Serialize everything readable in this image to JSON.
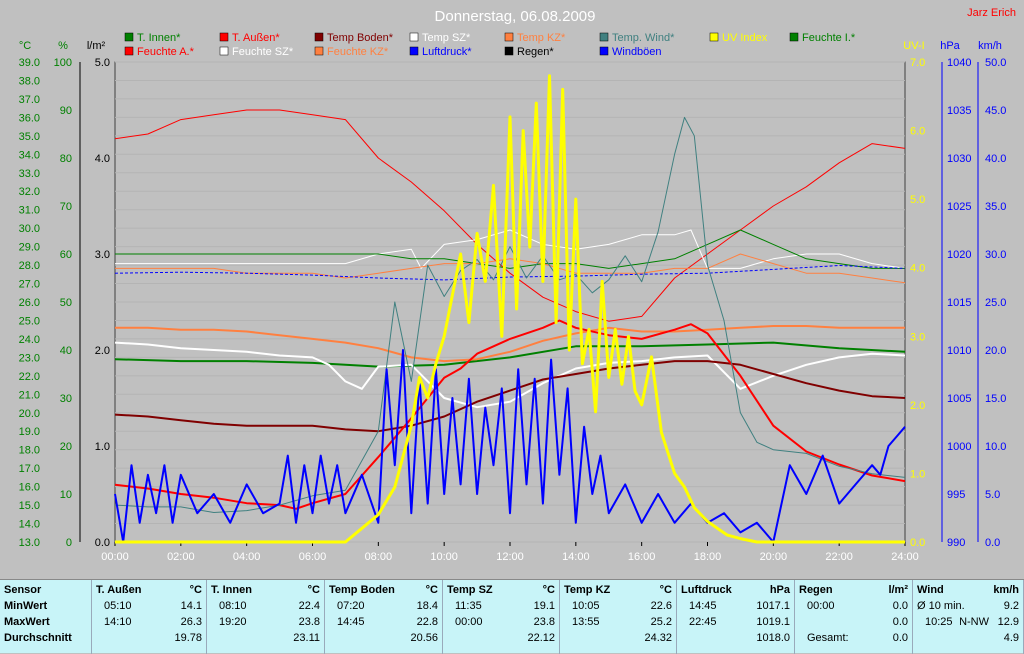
{
  "title": "Donnerstag, 06.08.2009",
  "author": "Jarz Erich",
  "legend": [
    {
      "name": "T. Innen*",
      "color": "#008000"
    },
    {
      "name": "T. Außen*",
      "color": "#ff0000"
    },
    {
      "name": "Temp Boden*",
      "color": "#800000"
    },
    {
      "name": "Temp SZ*",
      "color": "#ffffff"
    },
    {
      "name": "Temp KZ*",
      "color": "#ff8040"
    },
    {
      "name": "Temp. Wind*",
      "color": "#408080"
    },
    {
      "name": "UV Index",
      "color": "#ffff00"
    },
    {
      "name": "Feuchte I.*",
      "color": "#008000"
    },
    {
      "name": "Feuchte A.*",
      "color": "#ff0000"
    },
    {
      "name": "Feuchte SZ*",
      "color": "#ffffff"
    },
    {
      "name": "Feuchte KZ*",
      "color": "#ff8040"
    },
    {
      "name": "Luftdruck*",
      "color": "#0000ff"
    },
    {
      "name": "Regen*",
      "color": "#000000"
    },
    {
      "name": "Windböen",
      "color": "#0000ff"
    }
  ],
  "axes": {
    "temp": {
      "unit": "°C",
      "color": "#008000",
      "ticks": [
        "39.0",
        "38.0",
        "37.0",
        "36.0",
        "35.0",
        "34.0",
        "33.0",
        "32.0",
        "31.0",
        "30.0",
        "29.0",
        "28.0",
        "27.0",
        "26.0",
        "25.0",
        "24.0",
        "23.0",
        "22.0",
        "21.0",
        "20.0",
        "19.0",
        "18.0",
        "17.0",
        "16.0",
        "15.0",
        "14.0",
        "13.0"
      ]
    },
    "hum": {
      "unit": "%",
      "color": "#008000",
      "ticks": [
        "100",
        "90",
        "80",
        "70",
        "60",
        "50",
        "40",
        "30",
        "20",
        "10",
        "0"
      ]
    },
    "rain": {
      "unit": "l/m²",
      "color": "#000000",
      "ticks": [
        "5.0",
        "4.0",
        "3.0",
        "2.0",
        "1.0",
        "0.0"
      ]
    },
    "uv": {
      "unit": "UV-I",
      "color": "#ffff00",
      "ticks": [
        "7.0",
        "6.0",
        "5.0",
        "4.0",
        "3.0",
        "2.0",
        "1.0",
        "0.0"
      ]
    },
    "press": {
      "unit": "hPa",
      "color": "#0000ff",
      "ticks": [
        "1040",
        "1035",
        "1030",
        "1025",
        "1020",
        "1015",
        "1010",
        "1005",
        "1000",
        "995",
        "990"
      ]
    },
    "wind": {
      "unit": "km/h",
      "color": "#0000ff",
      "ticks": [
        "50.0",
        "45.0",
        "40.0",
        "35.0",
        "30.0",
        "25.0",
        "20.0",
        "15.0",
        "10.0",
        "5.0",
        "0.0"
      ]
    },
    "time": {
      "ticks": [
        "00:00",
        "02:00",
        "04:00",
        "06:00",
        "08:00",
        "10:00",
        "12:00",
        "14:00",
        "16:00",
        "18:00",
        "20:00",
        "22:00",
        "24:00"
      ]
    }
  },
  "chart_data": {
    "type": "line",
    "title": "Donnerstag, 06.08.2009",
    "x_unit": "hours",
    "series": [
      {
        "name": "Feuchte A.*",
        "axis": "hum",
        "color": "#ff0000",
        "width": 1,
        "x": [
          0,
          1,
          2,
          3,
          4,
          5,
          6,
          7,
          8,
          9,
          10,
          11,
          12,
          13,
          14,
          15,
          16,
          17,
          18,
          19,
          20,
          21,
          22,
          23,
          24
        ],
        "values": [
          84,
          85,
          88,
          89,
          90,
          90,
          89,
          88,
          80,
          75,
          69,
          62,
          56,
          51,
          48,
          46,
          47,
          55,
          60,
          65,
          70,
          74,
          79,
          83,
          82
        ]
      },
      {
        "name": "Feuchte SZ*",
        "axis": "hum",
        "color": "#ffffff",
        "width": 1,
        "x": [
          0,
          1,
          2,
          3,
          4,
          5,
          6,
          7,
          8,
          9,
          9.3,
          10,
          11,
          12,
          13,
          14,
          15,
          16,
          17,
          17.5,
          18,
          19,
          20,
          21,
          22,
          23,
          24
        ],
        "values": [
          58,
          58,
          58,
          58,
          58,
          58,
          58,
          58,
          60,
          61,
          57,
          62,
          63,
          65,
          62,
          61,
          62,
          64,
          64,
          65,
          57,
          57,
          59,
          60,
          60,
          58,
          57
        ]
      },
      {
        "name": "Feuchte I.*",
        "axis": "hum",
        "color": "#008000",
        "width": 1,
        "x": [
          0,
          1,
          2,
          3,
          4,
          5,
          6,
          7,
          8,
          9,
          10,
          11,
          12,
          13,
          14,
          15,
          16,
          17,
          18,
          19,
          20,
          21,
          22,
          23,
          24
        ],
        "values": [
          60,
          60,
          60,
          60,
          60,
          60,
          60,
          60,
          60,
          59,
          59,
          58,
          57,
          58,
          58,
          57,
          58,
          59,
          62,
          65,
          62,
          59,
          58,
          57,
          57
        ]
      },
      {
        "name": "Feuchte KZ*",
        "axis": "hum",
        "color": "#ff8040",
        "width": 1,
        "x": [
          0,
          1,
          2,
          3,
          4,
          5,
          6,
          7,
          8,
          9,
          10,
          11,
          12,
          13,
          14,
          15,
          16,
          17,
          18,
          19,
          20,
          21,
          22,
          23,
          24
        ],
        "values": [
          57,
          57,
          57,
          57,
          56,
          56,
          56,
          55,
          56,
          57,
          58,
          58,
          59,
          58,
          56,
          56,
          56,
          57,
          57,
          60,
          58,
          56,
          56,
          55,
          54
        ]
      },
      {
        "name": "Luftdruck*",
        "axis": "press",
        "color": "#0000ff",
        "width": 1,
        "dash": "3,2",
        "x": [
          0,
          2,
          4,
          6,
          8,
          10,
          12,
          14,
          16,
          18,
          20,
          22,
          24
        ],
        "values": [
          1018.0,
          1018.1,
          1018.0,
          1017.8,
          1017.5,
          1017.3,
          1017.6,
          1017.7,
          1017.9,
          1018.0,
          1018.4,
          1018.8,
          1018.5
        ]
      },
      {
        "name": "T. Innen*",
        "axis": "temp",
        "color": "#008000",
        "width": 2,
        "x": [
          0,
          2,
          4,
          6,
          8,
          10,
          12,
          14,
          16,
          18,
          20,
          22,
          24
        ],
        "values": [
          22.9,
          22.8,
          22.8,
          22.7,
          22.5,
          22.6,
          23.0,
          23.6,
          23.6,
          23.7,
          23.8,
          23.5,
          23.3
        ]
      },
      {
        "name": "Temp KZ*",
        "axis": "temp",
        "color": "#ff8040",
        "width": 2,
        "x": [
          0,
          1,
          2,
          3,
          4,
          5,
          6,
          7,
          8,
          9,
          10,
          11,
          12,
          13,
          14,
          15,
          16,
          17,
          18,
          19,
          20,
          21,
          22,
          23,
          24
        ],
        "values": [
          24.6,
          24.6,
          24.5,
          24.5,
          24.4,
          24.2,
          24.0,
          23.8,
          23.5,
          23.0,
          22.8,
          22.9,
          23.3,
          23.9,
          24.3,
          24.6,
          24.4,
          24.4,
          24.5,
          24.6,
          24.7,
          24.7,
          24.6,
          24.6,
          24.6
        ]
      },
      {
        "name": "Temp SZ*",
        "axis": "temp",
        "color": "#ffffff",
        "width": 2,
        "x": [
          0,
          1,
          2,
          3,
          4,
          5,
          6,
          6.5,
          7,
          7.5,
          8,
          9,
          10,
          11,
          12,
          13,
          14,
          15,
          16,
          17,
          18,
          19,
          20,
          21,
          22,
          23,
          24
        ],
        "values": [
          23.8,
          23.7,
          23.5,
          23.4,
          23.3,
          23.1,
          23.0,
          22.6,
          21.7,
          21.3,
          22.5,
          22.6,
          20.8,
          20.3,
          20.6,
          21.6,
          22.4,
          22.7,
          22.8,
          23.0,
          23.1,
          21.3,
          22.0,
          22.6,
          23.0,
          23.2,
          23.1
        ]
      },
      {
        "name": "Temp Boden*",
        "axis": "temp",
        "color": "#800000",
        "width": 2,
        "x": [
          0,
          1,
          2,
          3,
          4,
          5,
          6,
          7,
          8,
          9,
          10,
          11,
          12,
          13,
          14,
          15,
          16,
          17,
          18,
          19,
          20,
          21,
          22,
          23,
          24
        ],
        "values": [
          19.9,
          19.8,
          19.6,
          19.4,
          19.3,
          19.3,
          19.3,
          19.1,
          19.0,
          19.3,
          19.8,
          20.6,
          21.2,
          21.8,
          22.1,
          22.4,
          22.6,
          22.8,
          22.8,
          22.6,
          22.1,
          21.6,
          21.2,
          20.9,
          20.8
        ]
      },
      {
        "name": "T. Außen*",
        "axis": "temp",
        "color": "#ff0000",
        "width": 2,
        "x": [
          0,
          1,
          2,
          3,
          4,
          5,
          5.5,
          6,
          7,
          8,
          9,
          10,
          10.5,
          11,
          12,
          13,
          13.5,
          14,
          15,
          16,
          17,
          17.5,
          18,
          19,
          20,
          21,
          22,
          23,
          24
        ],
        "values": [
          16.1,
          15.9,
          15.6,
          15.4,
          15.1,
          15.0,
          14.8,
          15.1,
          15.6,
          17.6,
          19.7,
          21.9,
          22.4,
          23.2,
          24.0,
          24.6,
          25.0,
          24.6,
          24.2,
          24.0,
          24.5,
          24.8,
          24.3,
          22.0,
          19.3,
          17.9,
          17.2,
          16.6,
          16.3
        ]
      },
      {
        "name": "Temp. Wind*",
        "axis": "temp",
        "color": "#408080",
        "width": 1,
        "x": [
          0,
          1,
          2,
          3,
          4,
          5,
          6,
          7,
          8,
          8.5,
          9,
          9.5,
          10,
          10.5,
          11,
          11.5,
          12,
          12.5,
          13,
          13.5,
          14,
          14.5,
          15,
          15.5,
          16,
          16.5,
          17,
          17.3,
          17.6,
          18,
          18.5,
          19,
          19.5,
          20,
          21,
          22,
          23,
          24
        ],
        "values": [
          15.0,
          14.9,
          14.9,
          14.6,
          14.7,
          15.0,
          15.5,
          15.8,
          19.0,
          26.0,
          21.7,
          28.0,
          26.3,
          27.7,
          28.3,
          27.2,
          29.0,
          27.3,
          28.5,
          27.2,
          27.5,
          26.5,
          27.2,
          28.5,
          27.1,
          29.8,
          34.0,
          36.0,
          35.0,
          28.0,
          25.0,
          20.0,
          18.4,
          18.0,
          17.8,
          17.1,
          16.7,
          16.5
        ]
      },
      {
        "name": "Windböen",
        "axis": "wind",
        "color": "#0000ff",
        "width": 2,
        "x": [
          0,
          0.25,
          0.5,
          0.75,
          1,
          1.25,
          1.5,
          1.75,
          2,
          2.5,
          3,
          3.5,
          4,
          4.5,
          5,
          5.25,
          5.5,
          5.75,
          6,
          6.25,
          6.5,
          6.75,
          7,
          7.5,
          8,
          8.25,
          8.5,
          8.75,
          9,
          9.25,
          9.5,
          9.75,
          10,
          10.25,
          10.5,
          10.75,
          11,
          11.25,
          11.5,
          11.75,
          12,
          12.25,
          12.5,
          12.75,
          13,
          13.25,
          13.5,
          13.75,
          14,
          14.25,
          14.5,
          14.75,
          15,
          15.5,
          16,
          16.5,
          17,
          17.5,
          18,
          18.5,
          19,
          19.5,
          20,
          20.5,
          21,
          21.5,
          22,
          22.5,
          23,
          23.25,
          23.5,
          23.75,
          24
        ],
        "values": [
          5,
          0,
          8,
          2,
          7,
          3,
          8,
          2,
          7,
          3,
          5,
          2,
          6,
          3,
          4,
          9,
          2,
          8,
          3,
          9,
          4,
          8,
          3,
          7,
          2,
          18,
          8,
          20,
          3,
          17,
          4,
          18,
          5,
          15,
          6,
          17,
          5,
          14,
          8,
          16,
          3,
          18,
          6,
          17,
          4,
          19,
          7,
          16,
          2,
          12,
          5,
          9,
          3,
          6,
          2,
          5,
          2,
          4,
          2,
          3,
          1,
          2,
          0,
          8,
          5,
          9,
          4,
          6,
          8,
          7,
          10,
          11,
          12
        ]
      },
      {
        "name": "UV Index",
        "axis": "uv",
        "color": "#ffff00",
        "width": 3,
        "x": [
          0,
          1,
          2,
          3,
          4,
          5,
          6,
          7,
          7.5,
          8,
          8.5,
          9,
          9.25,
          9.5,
          9.75,
          10,
          10.25,
          10.5,
          10.75,
          11,
          11.25,
          11.5,
          11.75,
          12,
          12.2,
          12.4,
          12.6,
          12.8,
          13,
          13.2,
          13.4,
          13.6,
          13.8,
          14,
          14.2,
          14.4,
          14.6,
          14.8,
          15,
          15.2,
          15.4,
          15.6,
          15.8,
          16,
          16.3,
          16.6,
          17,
          17.3,
          17.6,
          18,
          18.3,
          18.6,
          19,
          19.5,
          20,
          21,
          22,
          23,
          24
        ],
        "values": [
          0,
          0,
          0,
          0,
          0,
          0,
          0,
          0,
          0.2,
          0.4,
          0.8,
          1.7,
          2.4,
          2.1,
          2.6,
          3.0,
          3.6,
          4.2,
          3.2,
          4.5,
          3.8,
          5.2,
          3.0,
          6.2,
          3.4,
          6.0,
          4.3,
          6.4,
          3.8,
          6.8,
          3.2,
          6.6,
          2.8,
          5.0,
          2.6,
          3.1,
          1.9,
          3.8,
          2.4,
          3.1,
          2.3,
          3.0,
          2.2,
          2.0,
          2.7,
          1.6,
          1.0,
          0.8,
          0.5,
          0.3,
          0.2,
          0.1,
          0.05,
          0,
          0,
          0,
          0,
          0,
          0
        ]
      }
    ]
  },
  "stats": {
    "labels": {
      "sensor": "Sensor",
      "min": "MinWert",
      "max": "MaxWert",
      "avg": "Durchschnitt"
    },
    "columns": [
      {
        "name": "T. Außen",
        "unit": "°C",
        "min_time": "05:10",
        "min": "14.1",
        "max_time": "14:10",
        "max": "26.3",
        "avg": "19.78"
      },
      {
        "name": "T. Innen",
        "unit": "°C",
        "min_time": "08:10",
        "min": "22.4",
        "max_time": "19:20",
        "max": "23.8",
        "avg": "23.11"
      },
      {
        "name": "Temp Boden",
        "unit": "°C",
        "min_time": "07:20",
        "min": "18.4",
        "max_time": "14:45",
        "max": "22.8",
        "avg": "20.56"
      },
      {
        "name": "Temp SZ",
        "unit": "°C",
        "min_time": "11:35",
        "min": "19.1",
        "max_time": "00:00",
        "max": "23.8",
        "avg": "22.12"
      },
      {
        "name": "Temp KZ",
        "unit": "°C",
        "min_time": "10:05",
        "min": "22.6",
        "max_time": "13:55",
        "max": "25.2",
        "avg": "24.32"
      },
      {
        "name": "Luftdruck",
        "unit": "hPa",
        "min_time": "14:45",
        "min": "1017.1",
        "max_time": "22:45",
        "max": "1019.1",
        "avg": "1018.0"
      },
      {
        "name": "Regen",
        "unit": "l/m²",
        "min_time": "00:00",
        "min": "0.0",
        "max_time": "",
        "max": "0.0",
        "avg_label": "Gesamt:",
        "avg": "0.0"
      },
      {
        "name": "Wind",
        "unit": "km/h",
        "min_time": "Ø 10 min.",
        "min": "9.2",
        "max_time": "10:25",
        "max_dir": "N-NW",
        "max": "12.9",
        "avg": "4.9"
      }
    ]
  }
}
